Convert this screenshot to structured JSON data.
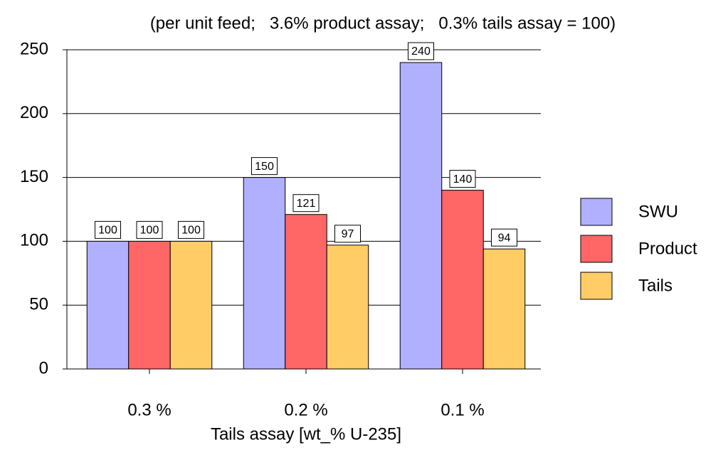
{
  "chart_data": {
    "type": "bar",
    "title": "(per unit feed;   3.6% product assay;   0.3% tails assay = 100)",
    "x_label": "Tails assay [wt_% U-235]",
    "categories": [
      "0.3 %",
      "0.2 %",
      "0.1 %"
    ],
    "series": [
      {
        "name": "SWU",
        "color": "#b0b0ff",
        "values": [
          100,
          150,
          240
        ]
      },
      {
        "name": "Product",
        "color": "#ff6666",
        "values": [
          100,
          121,
          140
        ]
      },
      {
        "name": "Tails",
        "color": "#ffcc66",
        "values": [
          100,
          97,
          94
        ]
      }
    ],
    "ylim": [
      0,
      250
    ],
    "yticks": [
      0,
      50,
      100,
      150,
      200,
      250
    ],
    "grid": true,
    "legend": "right"
  }
}
